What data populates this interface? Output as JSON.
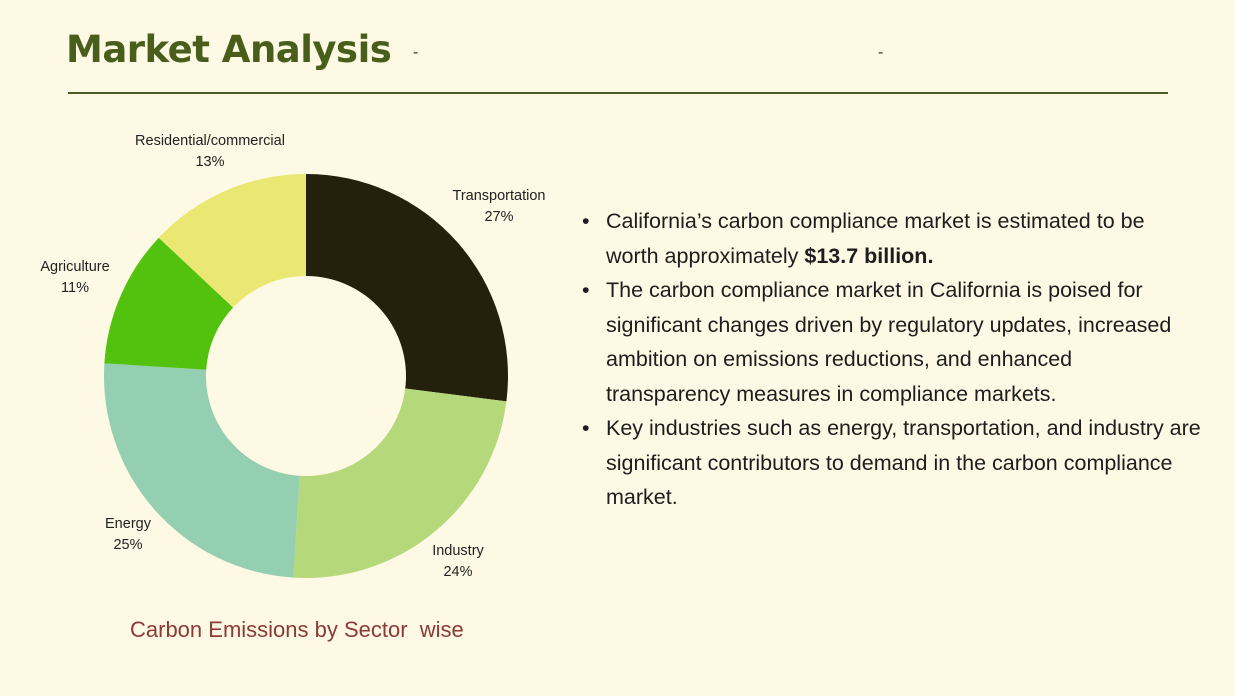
{
  "header": {
    "title": "Market Analysis",
    "dash_left": "-",
    "dash_right": "-"
  },
  "colors": {
    "background": "#fdf9e4",
    "title": "#4a5e1c",
    "caption": "#8b3a36"
  },
  "chart_data": {
    "type": "pie",
    "variant": "donut",
    "title": "Carbon Emissions by Sector  wise",
    "slices": [
      {
        "label": "Transportation",
        "value": 27,
        "value_label": "27%",
        "color": "#23200b"
      },
      {
        "label": "Industry",
        "value": 24,
        "value_label": "24%",
        "color": "#b5d97a"
      },
      {
        "label": "Energy",
        "value": 25,
        "value_label": "25%",
        "color": "#95cfb1"
      },
      {
        "label": "Agriculture",
        "value": 11,
        "value_label": "11%",
        "color": "#52c20f"
      },
      {
        "label": "Residential/commercial",
        "value": 13,
        "value_label": "13%",
        "color": "#ebe773"
      }
    ]
  },
  "bullets": [
    {
      "text": "California’s carbon compliance market is estimated to be worth approximately ",
      "bold": "$13.7 billion."
    },
    {
      "text": "The carbon compliance market in California is poised for significant changes driven by regulatory updates, increased ambition on emissions reductions, and enhanced transparency measures in compliance markets.",
      "bold": ""
    },
    {
      "text": "Key industries such as energy, transportation, and industry are significant contributors to demand in the carbon compliance market.",
      "bold": ""
    }
  ],
  "bullet_symbol": "•"
}
